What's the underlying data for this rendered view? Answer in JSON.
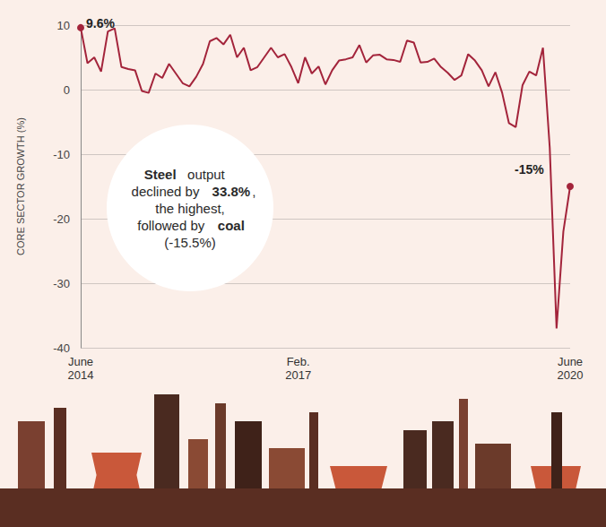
{
  "chart_data": {
    "type": "line",
    "y_label": "CORE SECTOR GROWTH (%)",
    "annotation": [
      "Steel",
      " output declined by ",
      "33.8%",
      ", the highest, followed by ",
      "coal",
      " (-15.5%)"
    ],
    "categories": [
      "June 2014",
      null,
      null,
      null,
      null,
      null,
      null,
      null,
      null,
      null,
      null,
      null,
      null,
      null,
      null,
      null,
      null,
      null,
      null,
      null,
      null,
      null,
      null,
      null,
      null,
      null,
      null,
      null,
      null,
      null,
      null,
      null,
      "Feb. 2017",
      null,
      null,
      null,
      null,
      null,
      null,
      null,
      null,
      null,
      null,
      null,
      null,
      null,
      null,
      null,
      null,
      null,
      null,
      null,
      null,
      null,
      null,
      null,
      null,
      null,
      null,
      null,
      null,
      null,
      null,
      null,
      null,
      null,
      null,
      null,
      null,
      null,
      null,
      null,
      "June 2020"
    ],
    "values": [
      9.6,
      4.1,
      5.0,
      2.8,
      9.0,
      9.5,
      3.5,
      3.2,
      3.0,
      -0.2,
      -0.5,
      2.5,
      1.8,
      4.0,
      2.5,
      1.0,
      0.5,
      2.0,
      4.0,
      7.5,
      8.0,
      7.0,
      8.5,
      5.0,
      6.5,
      3.0,
      3.5,
      5.0,
      6.5,
      5.0,
      5.5,
      3.5,
      1.0,
      5.0,
      2.5,
      3.6,
      0.8,
      3.0,
      4.5,
      4.7,
      5.0,
      6.9,
      4.2,
      5.3,
      5.4,
      4.7,
      4.6,
      4.3,
      7.6,
      7.3,
      4.2,
      4.3,
      4.8,
      3.5,
      2.6,
      1.5,
      2.2,
      5.5,
      4.5,
      3.0,
      0.5,
      2.7,
      -0.5,
      -5.2,
      -5.8,
      0.7,
      2.8,
      2.2,
      6.5,
      -9.0,
      -37.0,
      -22.0,
      -15.0
    ],
    "value_labels": [
      "9.6%",
      null,
      null,
      null,
      null,
      null,
      null,
      null,
      null,
      null,
      null,
      null,
      null,
      null,
      null,
      null,
      null,
      null,
      null,
      null,
      null,
      null,
      null,
      null,
      null,
      null,
      null,
      null,
      null,
      null,
      null,
      null,
      null,
      null,
      null,
      null,
      null,
      null,
      null,
      null,
      null,
      null,
      null,
      null,
      null,
      null,
      null,
      null,
      null,
      null,
      null,
      null,
      null,
      null,
      null,
      null,
      null,
      null,
      null,
      null,
      null,
      null,
      null,
      null,
      null,
      null,
      null,
      null,
      null,
      null,
      null,
      null,
      "-15%"
    ],
    "color": "#a3243b",
    "ylim": [
      -40,
      10
    ],
    "yticks": [
      -40,
      -30,
      -20,
      -10,
      0,
      10
    ],
    "grid": true
  }
}
